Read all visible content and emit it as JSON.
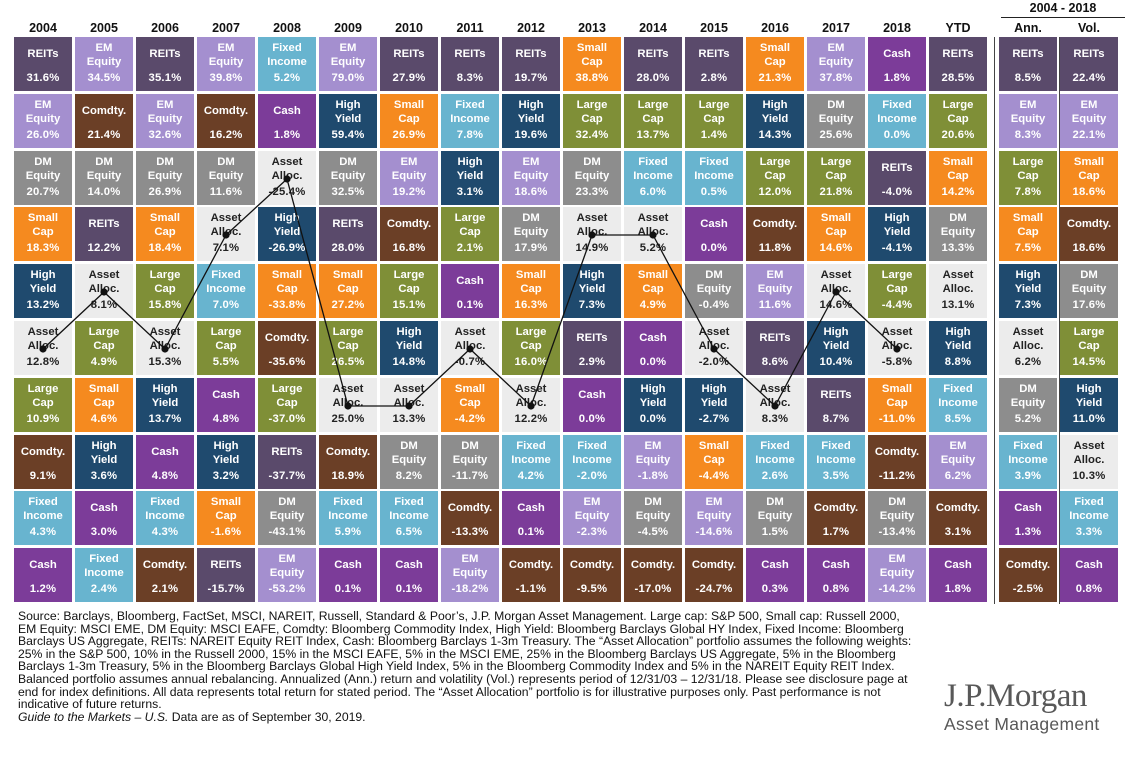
{
  "header": {
    "range_label": "2004 - 2018",
    "columns": [
      "2004",
      "2005",
      "2006",
      "2007",
      "2008",
      "2009",
      "2010",
      "2011",
      "2012",
      "2013",
      "2014",
      "2015",
      "2016",
      "2017",
      "2018",
      "YTD",
      "Ann.",
      "Vol."
    ]
  },
  "colors": {
    "REITs": "#5a4a6b",
    "EM Equity": "#a48fcf",
    "Fixed Income": "#68b4cf",
    "Small Cap": "#f58a1f",
    "Cash": "#7c3c99",
    "Comdty.": "#6b3f26",
    "High Yield": "#1f4a6e",
    "DM Equity": "#8d8d8d",
    "Large Cap": "#7f8f37",
    "Asset Alloc.": "#ececec"
  },
  "chart_data": {
    "type": "table",
    "title": "",
    "columns": [
      "2004",
      "2005",
      "2006",
      "2007",
      "2008",
      "2009",
      "2010",
      "2011",
      "2012",
      "2013",
      "2014",
      "2015",
      "2016",
      "2017",
      "2018",
      "YTD",
      "Ann.",
      "Vol."
    ],
    "column_group": {
      "label": "2004 - 2018",
      "columns": [
        "Ann.",
        "Vol."
      ]
    },
    "rank_lines": "Asset Alloc. connected across years 2004-2018",
    "cells": [
      [
        {
          "asset": "REITs",
          "value": "31.6%"
        },
        {
          "asset": "EM Equity",
          "value": "26.0%"
        },
        {
          "asset": "DM Equity",
          "value": "20.7%"
        },
        {
          "asset": "Small Cap",
          "value": "18.3%"
        },
        {
          "asset": "High Yield",
          "value": "13.2%"
        },
        {
          "asset": "Asset Alloc.",
          "value": "12.8%"
        },
        {
          "asset": "Large Cap",
          "value": "10.9%"
        },
        {
          "asset": "Comdty.",
          "value": "9.1%"
        },
        {
          "asset": "Fixed Income",
          "value": "4.3%"
        },
        {
          "asset": "Cash",
          "value": "1.2%"
        }
      ],
      [
        {
          "asset": "EM Equity",
          "value": "34.5%"
        },
        {
          "asset": "Comdty.",
          "value": "21.4%"
        },
        {
          "asset": "DM Equity",
          "value": "14.0%"
        },
        {
          "asset": "REITs",
          "value": "12.2%"
        },
        {
          "asset": "Asset Alloc.",
          "value": "8.1%"
        },
        {
          "asset": "Large Cap",
          "value": "4.9%"
        },
        {
          "asset": "Small Cap",
          "value": "4.6%"
        },
        {
          "asset": "High Yield",
          "value": "3.6%"
        },
        {
          "asset": "Cash",
          "value": "3.0%"
        },
        {
          "asset": "Fixed Income",
          "value": "2.4%"
        }
      ],
      [
        {
          "asset": "REITs",
          "value": "35.1%"
        },
        {
          "asset": "EM Equity",
          "value": "32.6%"
        },
        {
          "asset": "DM Equity",
          "value": "26.9%"
        },
        {
          "asset": "Small Cap",
          "value": "18.4%"
        },
        {
          "asset": "Large Cap",
          "value": "15.8%"
        },
        {
          "asset": "Asset Alloc.",
          "value": "15.3%"
        },
        {
          "asset": "High Yield",
          "value": "13.7%"
        },
        {
          "asset": "Cash",
          "value": "4.8%"
        },
        {
          "asset": "Fixed Income",
          "value": "4.3%"
        },
        {
          "asset": "Comdty.",
          "value": "2.1%"
        }
      ],
      [
        {
          "asset": "EM Equity",
          "value": "39.8%"
        },
        {
          "asset": "Comdty.",
          "value": "16.2%"
        },
        {
          "asset": "DM Equity",
          "value": "11.6%"
        },
        {
          "asset": "Asset Alloc.",
          "value": "7.1%"
        },
        {
          "asset": "Fixed Income",
          "value": "7.0%"
        },
        {
          "asset": "Large Cap",
          "value": "5.5%"
        },
        {
          "asset": "Cash",
          "value": "4.8%"
        },
        {
          "asset": "High Yield",
          "value": "3.2%"
        },
        {
          "asset": "Small Cap",
          "value": "-1.6%"
        },
        {
          "asset": "REITs",
          "value": "-15.7%"
        }
      ],
      [
        {
          "asset": "Fixed Income",
          "value": "5.2%"
        },
        {
          "asset": "Cash",
          "value": "1.8%"
        },
        {
          "asset": "Asset Alloc.",
          "value": "-25.4%"
        },
        {
          "asset": "High Yield",
          "value": "-26.9%"
        },
        {
          "asset": "Small Cap",
          "value": "-33.8%"
        },
        {
          "asset": "Comdty.",
          "value": "-35.6%"
        },
        {
          "asset": "Large Cap",
          "value": "-37.0%"
        },
        {
          "asset": "REITs",
          "value": "-37.7%"
        },
        {
          "asset": "DM Equity",
          "value": "-43.1%"
        },
        {
          "asset": "EM Equity",
          "value": "-53.2%"
        }
      ],
      [
        {
          "asset": "EM Equity",
          "value": "79.0%"
        },
        {
          "asset": "High Yield",
          "value": "59.4%"
        },
        {
          "asset": "DM Equity",
          "value": "32.5%"
        },
        {
          "asset": "REITs",
          "value": "28.0%"
        },
        {
          "asset": "Small Cap",
          "value": "27.2%"
        },
        {
          "asset": "Large Cap",
          "value": "26.5%"
        },
        {
          "asset": "Asset Alloc.",
          "value": "25.0%"
        },
        {
          "asset": "Comdty.",
          "value": "18.9%"
        },
        {
          "asset": "Fixed Income",
          "value": "5.9%"
        },
        {
          "asset": "Cash",
          "value": "0.1%"
        }
      ],
      [
        {
          "asset": "REITs",
          "value": "27.9%"
        },
        {
          "asset": "Small Cap",
          "value": "26.9%"
        },
        {
          "asset": "EM Equity",
          "value": "19.2%"
        },
        {
          "asset": "Comdty.",
          "value": "16.8%"
        },
        {
          "asset": "Large Cap",
          "value": "15.1%"
        },
        {
          "asset": "High Yield",
          "value": "14.8%"
        },
        {
          "asset": "Asset Alloc.",
          "value": "13.3%"
        },
        {
          "asset": "DM Equity",
          "value": "8.2%"
        },
        {
          "asset": "Fixed Income",
          "value": "6.5%"
        },
        {
          "asset": "Cash",
          "value": "0.1%"
        }
      ],
      [
        {
          "asset": "REITs",
          "value": "8.3%"
        },
        {
          "asset": "Fixed Income",
          "value": "7.8%"
        },
        {
          "asset": "High Yield",
          "value": "3.1%"
        },
        {
          "asset": "Large Cap",
          "value": "2.1%"
        },
        {
          "asset": "Cash",
          "value": "0.1%"
        },
        {
          "asset": "Asset Alloc.",
          "value": "-0.7%"
        },
        {
          "asset": "Small Cap",
          "value": "-4.2%"
        },
        {
          "asset": "DM Equity",
          "value": "-11.7%"
        },
        {
          "asset": "Comdty.",
          "value": "-13.3%"
        },
        {
          "asset": "EM Equity",
          "value": "-18.2%"
        }
      ],
      [
        {
          "asset": "REITs",
          "value": "19.7%"
        },
        {
          "asset": "High Yield",
          "value": "19.6%"
        },
        {
          "asset": "EM Equity",
          "value": "18.6%"
        },
        {
          "asset": "DM Equity",
          "value": "17.9%"
        },
        {
          "asset": "Small Cap",
          "value": "16.3%"
        },
        {
          "asset": "Large Cap",
          "value": "16.0%"
        },
        {
          "asset": "Asset Alloc.",
          "value": "12.2%"
        },
        {
          "asset": "Fixed Income",
          "value": "4.2%"
        },
        {
          "asset": "Cash",
          "value": "0.1%"
        },
        {
          "asset": "Comdty.",
          "value": "-1.1%"
        }
      ],
      [
        {
          "asset": "Small Cap",
          "value": "38.8%"
        },
        {
          "asset": "Large Cap",
          "value": "32.4%"
        },
        {
          "asset": "DM Equity",
          "value": "23.3%"
        },
        {
          "asset": "Asset Alloc.",
          "value": "14.9%"
        },
        {
          "asset": "High Yield",
          "value": "7.3%"
        },
        {
          "asset": "REITs",
          "value": "2.9%"
        },
        {
          "asset": "Cash",
          "value": "0.0%"
        },
        {
          "asset": "Fixed Income",
          "value": "-2.0%"
        },
        {
          "asset": "EM Equity",
          "value": "-2.3%"
        },
        {
          "asset": "Comdty.",
          "value": "-9.5%"
        }
      ],
      [
        {
          "asset": "REITs",
          "value": "28.0%"
        },
        {
          "asset": "Large Cap",
          "value": "13.7%"
        },
        {
          "asset": "Fixed Income",
          "value": "6.0%"
        },
        {
          "asset": "Asset Alloc.",
          "value": "5.2%"
        },
        {
          "asset": "Small Cap",
          "value": "4.9%"
        },
        {
          "asset": "Cash",
          "value": "0.0%"
        },
        {
          "asset": "High Yield",
          "value": "0.0%"
        },
        {
          "asset": "EM Equity",
          "value": "-1.8%"
        },
        {
          "asset": "DM Equity",
          "value": "-4.5%"
        },
        {
          "asset": "Comdty.",
          "value": "-17.0%"
        }
      ],
      [
        {
          "asset": "REITs",
          "value": "2.8%"
        },
        {
          "asset": "Large Cap",
          "value": "1.4%"
        },
        {
          "asset": "Fixed Income",
          "value": "0.5%"
        },
        {
          "asset": "Cash",
          "value": "0.0%"
        },
        {
          "asset": "DM Equity",
          "value": "-0.4%"
        },
        {
          "asset": "Asset Alloc.",
          "value": "-2.0%"
        },
        {
          "asset": "High Yield",
          "value": "-2.7%"
        },
        {
          "asset": "Small Cap",
          "value": "-4.4%"
        },
        {
          "asset": "EM Equity",
          "value": "-14.6%"
        },
        {
          "asset": "Comdty.",
          "value": "-24.7%"
        }
      ],
      [
        {
          "asset": "Small Cap",
          "value": "21.3%"
        },
        {
          "asset": "High Yield",
          "value": "14.3%"
        },
        {
          "asset": "Large Cap",
          "value": "12.0%"
        },
        {
          "asset": "Comdty.",
          "value": "11.8%"
        },
        {
          "asset": "EM Equity",
          "value": "11.6%"
        },
        {
          "asset": "REITs",
          "value": "8.6%"
        },
        {
          "asset": "Asset Alloc.",
          "value": "8.3%"
        },
        {
          "asset": "Fixed Income",
          "value": "2.6%"
        },
        {
          "asset": "DM Equity",
          "value": "1.5%"
        },
        {
          "asset": "Cash",
          "value": "0.3%"
        }
      ],
      [
        {
          "asset": "EM Equity",
          "value": "37.8%"
        },
        {
          "asset": "DM Equity",
          "value": "25.6%"
        },
        {
          "asset": "Large Cap",
          "value": "21.8%"
        },
        {
          "asset": "Small Cap",
          "value": "14.6%"
        },
        {
          "asset": "Asset Alloc.",
          "value": "14.6%"
        },
        {
          "asset": "High Yield",
          "value": "10.4%"
        },
        {
          "asset": "REITs",
          "value": "8.7%"
        },
        {
          "asset": "Fixed Income",
          "value": "3.5%"
        },
        {
          "asset": "Comdty.",
          "value": "1.7%"
        },
        {
          "asset": "Cash",
          "value": "0.8%"
        }
      ],
      [
        {
          "asset": "Cash",
          "value": "1.8%"
        },
        {
          "asset": "Fixed Income",
          "value": "0.0%"
        },
        {
          "asset": "REITs",
          "value": "-4.0%"
        },
        {
          "asset": "High Yield",
          "value": "-4.1%"
        },
        {
          "asset": "Large Cap",
          "value": "-4.4%"
        },
        {
          "asset": "Asset Alloc.",
          "value": "-5.8%"
        },
        {
          "asset": "Small Cap",
          "value": "-11.0%"
        },
        {
          "asset": "Comdty.",
          "value": "-11.2%"
        },
        {
          "asset": "DM Equity",
          "value": "-13.4%"
        },
        {
          "asset": "EM Equity",
          "value": "-14.2%"
        }
      ],
      [
        {
          "asset": "REITs",
          "value": "28.5%"
        },
        {
          "asset": "Large Cap",
          "value": "20.6%"
        },
        {
          "asset": "Small Cap",
          "value": "14.2%"
        },
        {
          "asset": "DM Equity",
          "value": "13.3%"
        },
        {
          "asset": "Asset Alloc.",
          "value": "13.1%"
        },
        {
          "asset": "High Yield",
          "value": "8.8%"
        },
        {
          "asset": "Fixed Income",
          "value": "8.5%"
        },
        {
          "asset": "EM Equity",
          "value": "6.2%"
        },
        {
          "asset": "Comdty.",
          "value": "3.1%"
        },
        {
          "asset": "Cash",
          "value": "1.8%"
        }
      ],
      [
        {
          "asset": "REITs",
          "value": "8.5%"
        },
        {
          "asset": "EM Equity",
          "value": "8.3%"
        },
        {
          "asset": "Large Cap",
          "value": "7.8%"
        },
        {
          "asset": "Small Cap",
          "value": "7.5%"
        },
        {
          "asset": "High Yield",
          "value": "7.3%"
        },
        {
          "asset": "Asset Alloc.",
          "value": "6.2%"
        },
        {
          "asset": "DM Equity",
          "value": "5.2%"
        },
        {
          "asset": "Fixed Income",
          "value": "3.9%"
        },
        {
          "asset": "Cash",
          "value": "1.3%"
        },
        {
          "asset": "Comdty.",
          "value": "-2.5%"
        }
      ],
      [
        {
          "asset": "REITs",
          "value": "22.4%"
        },
        {
          "asset": "EM Equity",
          "value": "22.1%"
        },
        {
          "asset": "Small Cap",
          "value": "18.6%"
        },
        {
          "asset": "Comdty.",
          "value": "18.6%"
        },
        {
          "asset": "DM Equity",
          "value": "17.6%"
        },
        {
          "asset": "Large Cap",
          "value": "14.5%"
        },
        {
          "asset": "High Yield",
          "value": "11.0%"
        },
        {
          "asset": "Asset Alloc.",
          "value": "10.3%"
        },
        {
          "asset": "Fixed Income",
          "value": "3.3%"
        },
        {
          "asset": "Cash",
          "value": "0.8%"
        }
      ]
    ]
  },
  "footnote": {
    "text": "Source: Barclays, Bloomberg, FactSet, MSCI, NAREIT, Russell, Standard & Poor’s, J.P. Morgan Asset Management. Large cap: S&P 500, Small cap: Russell 2000, EM Equity: MSCI EME, DM Equity: MSCI EAFE, Comdty: Bloomberg Commodity Index, High Yield: Bloomberg Barclays Global HY Index, Fixed Income: Bloomberg Barclays US Aggregate, REITs: NAREIT Equity REIT Index, Cash: Bloomberg Barclays 1-3m Treasury. The “Asset Allocation” portfolio assumes the following weights: 25% in the S&P 500, 10% in the Russell 2000, 15% in the MSCI EAFE, 5% in the MSCI EME, 25% in the Bloomberg Barclays US Aggregate, 5% in the Bloomberg Barclays 1-3m Treasury, 5% in the Bloomberg Barclays Global High Yield Index, 5% in the Bloomberg Commodity Index and 5% in the NAREIT Equity REIT Index. Balanced portfolio assumes annual rebalancing. Annualized (Ann.) return and volatility (Vol.) represents period of 12/31/03 – 12/31/18. Please see disclosure page at end for index definitions. All data represents total return for stated period. The “Asset Allocation” portfolio is for illustrative purposes only. Past performance is not indicative of future returns.",
    "guide_title": "Guide to the Markets – U.S.",
    "guide_date": " Data are as of September 30, 2019."
  },
  "logo": {
    "brand": "J.P.Morgan",
    "sub": "Asset Management"
  }
}
